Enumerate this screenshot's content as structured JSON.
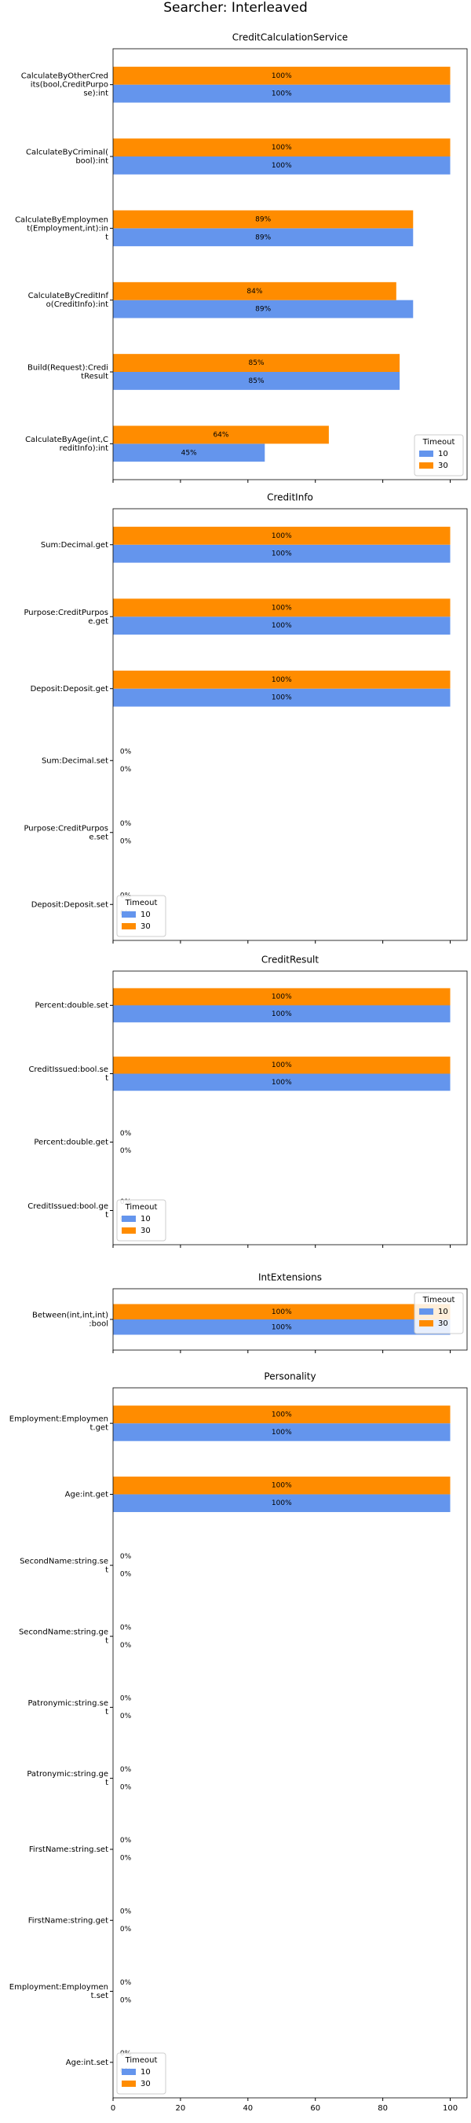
{
  "title": "Searcher: Interleaved",
  "chart_data": [
    {
      "type": "bar",
      "orientation": "horizontal",
      "title": "CreditCalculationService",
      "categories": [
        "CalculateByOtherCred\nits(bool,CreditPurpo\nse):int",
        "CalculateByCriminal(\nbool):int",
        "CalculateByEmploymen\nt(Employment,int):in\nt",
        "CalculateByCreditInf\no(CreditInfo):int",
        "Build(Request):Credi\ntResult",
        "CalculateByAge(int,C\nreditInfo):int"
      ],
      "series": [
        {
          "name": "10",
          "color": "#6495ed",
          "values": [
            100,
            100,
            89,
            89,
            85,
            45
          ],
          "value_labels": [
            "100%",
            "100%",
            "89%",
            "89%",
            "85%",
            "45%"
          ]
        },
        {
          "name": "30",
          "color": "#ff8c00",
          "values": [
            100,
            100,
            89,
            84,
            85,
            64
          ],
          "value_labels": [
            "100%",
            "100%",
            "89%",
            "84%",
            "85%",
            "64%"
          ]
        }
      ],
      "xlim": [
        0,
        105
      ],
      "xticks": [
        0,
        20,
        40,
        60,
        80,
        100
      ],
      "legend_title": "Timeout",
      "legend": "lower right"
    },
    {
      "type": "bar",
      "orientation": "horizontal",
      "title": "CreditInfo",
      "categories": [
        "Sum:Decimal.get",
        "Purpose:CreditPurpos\ne.get",
        "Deposit:Deposit.get",
        "Sum:Decimal.set",
        "Purpose:CreditPurpos\ne.set",
        "Deposit:Deposit.set"
      ],
      "series": [
        {
          "name": "10",
          "color": "#6495ed",
          "values": [
            100,
            100,
            100,
            0,
            0,
            0
          ],
          "value_labels": [
            "100%",
            "100%",
            "100%",
            "0%",
            "0%",
            "0%"
          ]
        },
        {
          "name": "30",
          "color": "#ff8c00",
          "values": [
            100,
            100,
            100,
            0,
            0,
            0
          ],
          "value_labels": [
            "100%",
            "100%",
            "100%",
            "0%",
            "0%",
            "0%"
          ]
        }
      ],
      "xlim": [
        0,
        105
      ],
      "xticks": [
        0,
        20,
        40,
        60,
        80,
        100
      ],
      "legend_title": "Timeout",
      "legend": "lower left"
    },
    {
      "type": "bar",
      "orientation": "horizontal",
      "title": "CreditResult",
      "categories": [
        "Percent:double.set",
        "CreditIssued:bool.se\nt",
        "Percent:double.get",
        "CreditIssued:bool.ge\nt"
      ],
      "series": [
        {
          "name": "10",
          "color": "#6495ed",
          "values": [
            100,
            100,
            0,
            0
          ],
          "value_labels": [
            "100%",
            "100%",
            "0%",
            "0%"
          ]
        },
        {
          "name": "30",
          "color": "#ff8c00",
          "values": [
            100,
            100,
            0,
            0
          ],
          "value_labels": [
            "100%",
            "100%",
            "0%",
            "0%"
          ]
        }
      ],
      "xlim": [
        0,
        105
      ],
      "xticks": [
        0,
        20,
        40,
        60,
        80,
        100
      ],
      "legend_title": "Timeout",
      "legend": "lower left"
    },
    {
      "type": "bar",
      "orientation": "horizontal",
      "title": "IntExtensions",
      "categories": [
        "Between(int,int,int)\n:bool"
      ],
      "series": [
        {
          "name": "10",
          "color": "#6495ed",
          "values": [
            100
          ],
          "value_labels": [
            "100%"
          ]
        },
        {
          "name": "30",
          "color": "#ff8c00",
          "values": [
            100
          ],
          "value_labels": [
            "100%"
          ]
        }
      ],
      "xlim": [
        0,
        105
      ],
      "xticks": [
        0,
        20,
        40,
        60,
        80,
        100
      ],
      "legend_title": "Timeout",
      "legend": "upper right"
    },
    {
      "type": "bar",
      "orientation": "horizontal",
      "title": "Personality",
      "categories": [
        "Employment:Employmen\nt.get",
        "Age:int.get",
        "SecondName:string.se\nt",
        "SecondName:string.ge\nt",
        "Patronymic:string.se\nt",
        "Patronymic:string.ge\nt",
        "FirstName:string.set",
        "FirstName:string.get",
        "Employment:Employmen\nt.set",
        "Age:int.set"
      ],
      "series": [
        {
          "name": "10",
          "color": "#6495ed",
          "values": [
            100,
            100,
            0,
            0,
            0,
            0,
            0,
            0,
            0,
            0
          ],
          "value_labels": [
            "100%",
            "100%",
            "0%",
            "0%",
            "0%",
            "0%",
            "0%",
            "0%",
            "0%",
            "0%"
          ]
        },
        {
          "name": "30",
          "color": "#ff8c00",
          "values": [
            100,
            100,
            0,
            0,
            0,
            0,
            0,
            0,
            0,
            0
          ],
          "value_labels": [
            "100%",
            "100%",
            "0%",
            "0%",
            "0%",
            "0%",
            "0%",
            "0%",
            "0%",
            "0%"
          ]
        }
      ],
      "xlim": [
        0,
        105
      ],
      "xticks": [
        0,
        20,
        40,
        60,
        80,
        100
      ],
      "show_xtick_labels": true,
      "legend_title": "Timeout",
      "legend": "lower left"
    }
  ]
}
